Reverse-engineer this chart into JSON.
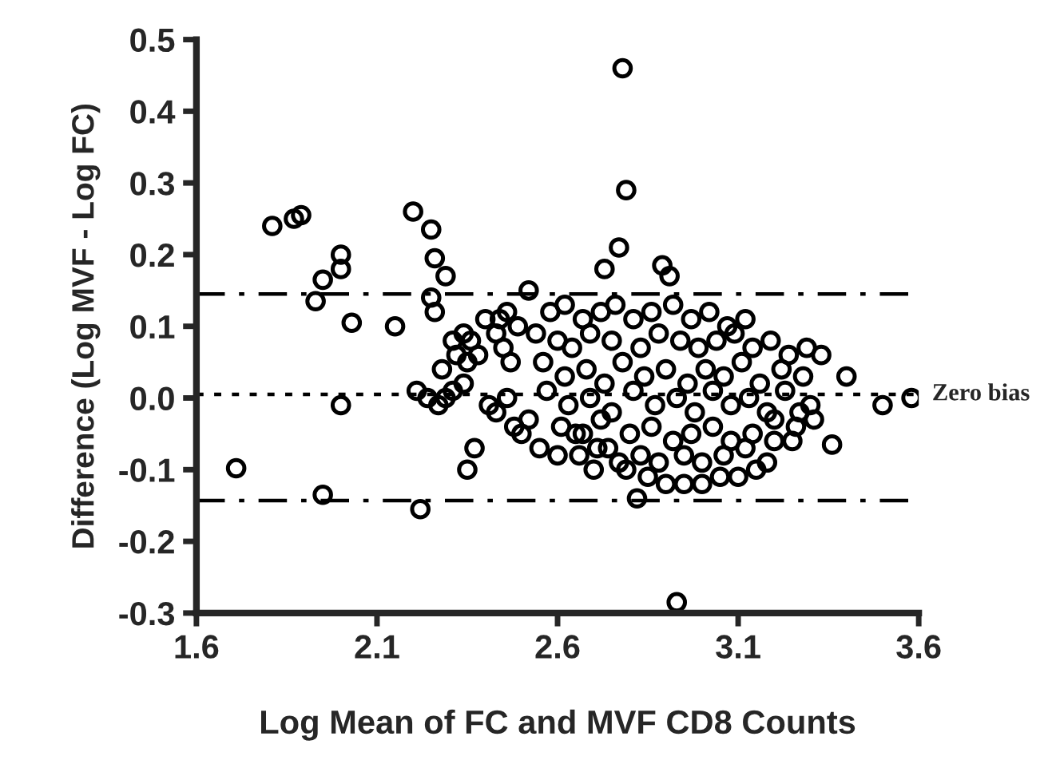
{
  "chart_data": {
    "type": "scatter",
    "xlabel": "Log Mean of FC and MVF CD8 Counts",
    "ylabel": "Difference (Log MVF - Log FC)",
    "xlim": [
      1.6,
      3.6
    ],
    "xticks": [
      1.6,
      2.1,
      2.6,
      3.1,
      3.6
    ],
    "ylim": [
      -0.3,
      0.5
    ],
    "yticks": [
      -0.3,
      -0.2,
      -0.1,
      {
        "value": 0.0,
        "label": "0.0"
      },
      0.1,
      0.2,
      0.3,
      0.4,
      0.5
    ],
    "marker": "circle",
    "grid": false,
    "legend": false,
    "ref_lines": [
      {
        "axis": "y",
        "value": 0.145,
        "line_style": "dashdot",
        "color": "#000000"
      },
      {
        "axis": "y",
        "value": 0.005,
        "line_style": "dotted",
        "color": "#000000",
        "label": "Zero bias"
      },
      {
        "axis": "y",
        "value": -0.143,
        "line_style": "dashdot",
        "color": "#000000"
      }
    ],
    "series": [
      {
        "color": "#000000",
        "x": [
          1.71,
          1.81,
          1.87,
          1.89,
          1.93,
          1.95,
          2.0,
          2.0,
          2.03,
          2.15,
          1.95,
          2.0,
          2.2,
          2.25,
          2.26,
          2.29,
          2.25,
          2.26,
          2.22,
          2.21,
          2.24,
          2.27,
          2.29,
          2.31,
          2.34,
          2.28,
          2.31,
          2.34,
          2.36,
          2.38,
          2.35,
          2.32,
          2.4,
          2.43,
          2.45,
          2.47,
          2.41,
          2.43,
          2.46,
          2.37,
          2.35,
          2.48,
          2.5,
          2.52,
          2.52,
          2.46,
          2.44,
          2.49,
          2.55,
          2.6,
          2.65,
          2.7,
          2.74,
          2.79,
          2.85,
          2.9,
          2.95,
          3.0,
          3.05,
          3.1,
          3.15,
          3.2,
          3.25,
          2.78,
          2.79,
          2.77,
          2.93,
          2.82,
          3.5,
          3.58,
          3.4,
          3.36,
          2.73,
          2.89,
          2.91,
          2.58,
          2.62,
          2.67,
          2.72,
          2.76,
          2.81,
          2.86,
          2.92,
          2.97,
          3.02,
          3.07,
          3.12,
          2.54,
          2.6,
          2.64,
          2.69,
          2.75,
          2.83,
          2.88,
          2.94,
          2.99,
          3.04,
          3.09,
          3.14,
          3.19,
          3.24,
          2.56,
          2.62,
          2.68,
          2.73,
          2.78,
          2.84,
          2.9,
          2.96,
          3.01,
          3.06,
          3.11,
          3.16,
          3.22,
          3.28,
          3.33,
          2.57,
          2.63,
          2.69,
          2.75,
          2.81,
          2.87,
          2.93,
          2.98,
          3.03,
          3.08,
          3.13,
          3.18,
          3.23,
          3.3,
          2.61,
          2.67,
          2.72,
          2.8,
          2.86,
          2.92,
          2.97,
          3.03,
          3.08,
          3.14,
          3.2,
          3.26,
          2.66,
          2.71,
          2.77,
          2.83,
          2.88,
          2.95,
          3.0,
          3.06,
          3.12,
          3.18,
          3.27,
          3.31,
          3.29
        ],
        "values": [
          -0.098,
          0.24,
          0.25,
          0.255,
          0.135,
          0.165,
          0.2,
          0.18,
          0.105,
          0.1,
          -0.135,
          -0.01,
          0.26,
          0.235,
          0.195,
          0.17,
          0.14,
          0.12,
          -0.155,
          0.01,
          0.0,
          -0.01,
          0.0,
          0.01,
          0.02,
          0.04,
          0.08,
          0.09,
          0.08,
          0.06,
          0.05,
          0.06,
          0.11,
          0.09,
          0.07,
          0.05,
          -0.01,
          -0.02,
          0.0,
          -0.07,
          -0.1,
          -0.04,
          -0.05,
          -0.03,
          0.15,
          0.12,
          0.11,
          0.1,
          -0.07,
          -0.08,
          -0.05,
          -0.1,
          -0.07,
          -0.1,
          -0.11,
          -0.12,
          -0.12,
          -0.12,
          -0.11,
          -0.11,
          -0.1,
          -0.06,
          -0.06,
          0.46,
          0.29,
          0.21,
          -0.285,
          -0.14,
          -0.01,
          0.0,
          0.03,
          -0.065,
          0.18,
          0.185,
          0.17,
          0.12,
          0.13,
          0.11,
          0.12,
          0.13,
          0.11,
          0.12,
          0.13,
          0.11,
          0.12,
          0.1,
          0.11,
          0.09,
          0.08,
          0.07,
          0.09,
          0.08,
          0.07,
          0.09,
          0.08,
          0.07,
          0.08,
          0.09,
          0.07,
          0.08,
          0.06,
          0.05,
          0.03,
          0.04,
          0.02,
          0.05,
          0.03,
          0.04,
          0.02,
          0.04,
          0.03,
          0.05,
          0.02,
          0.04,
          0.03,
          0.06,
          0.01,
          -0.01,
          0.0,
          -0.02,
          0.01,
          -0.01,
          0.0,
          -0.02,
          0.01,
          -0.01,
          0.0,
          -0.02,
          0.01,
          -0.01,
          -0.04,
          -0.05,
          -0.03,
          -0.05,
          -0.04,
          -0.06,
          -0.05,
          -0.04,
          -0.06,
          -0.05,
          -0.03,
          -0.04,
          -0.08,
          -0.07,
          -0.09,
          -0.08,
          -0.09,
          -0.08,
          -0.09,
          -0.08,
          -0.07,
          -0.09,
          -0.02,
          -0.03,
          0.07
        ]
      }
    ]
  }
}
